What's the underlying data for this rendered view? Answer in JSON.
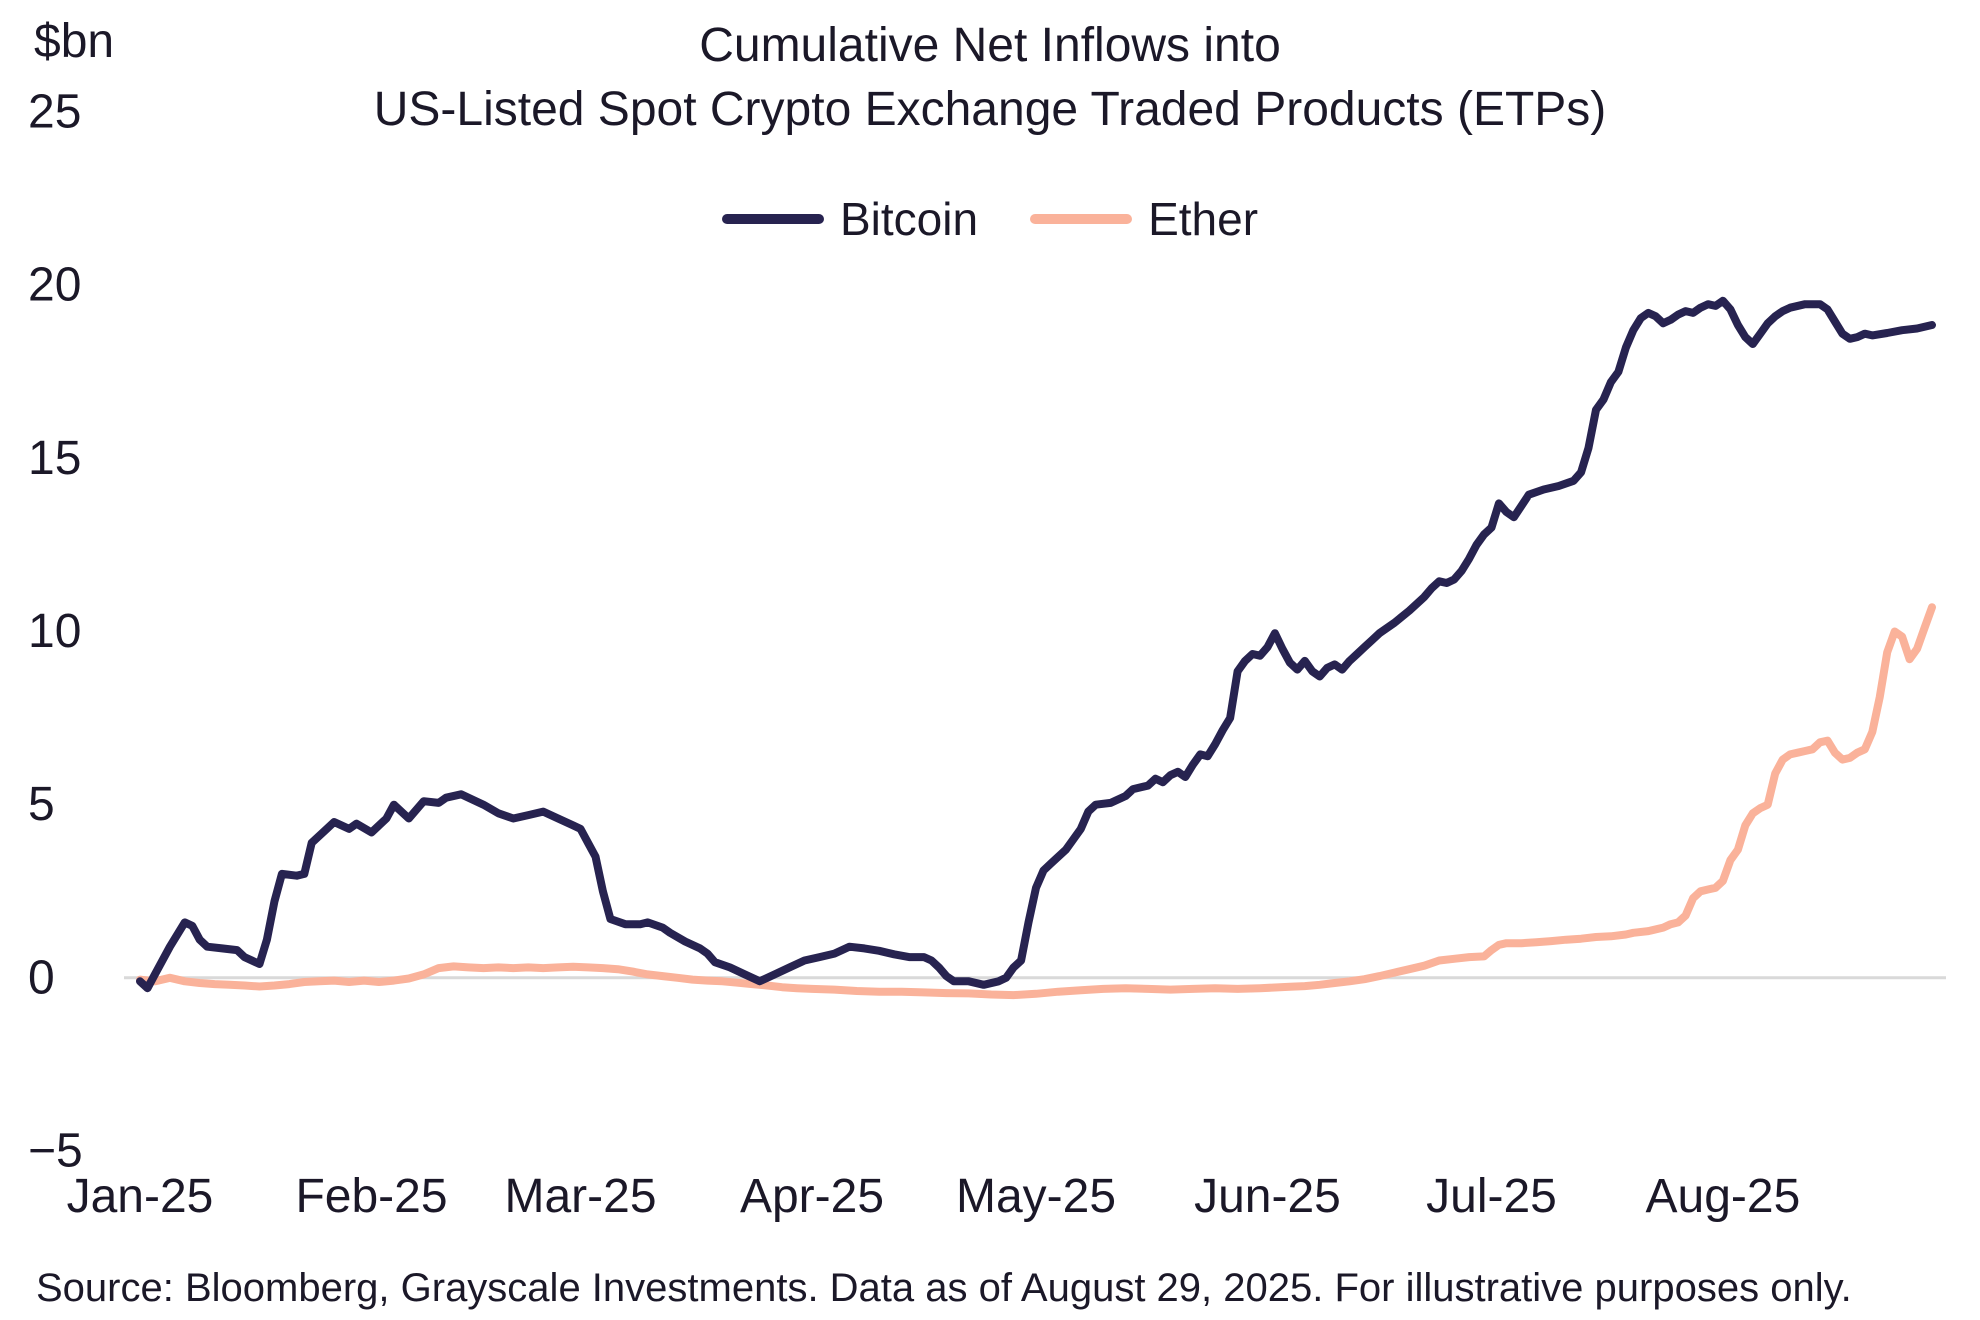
{
  "header": {
    "unit_label": "$bn",
    "title_line1": "Cumulative Net Inflows into",
    "title_line2": "US-Listed Spot Crypto Exchange Traded Products (ETPs)"
  },
  "legend": [
    {
      "label": "Bitcoin",
      "color": "#272350"
    },
    {
      "label": "Ether",
      "color": "#FAB29A"
    }
  ],
  "footer": {
    "source_text": "Source: Bloomberg, Grayscale Investments. Data as of August 29, 2025. For illustrative purposes only."
  },
  "colors": {
    "bitcoin": "#272350",
    "ether": "#FAB29A",
    "gridline": "#d9d9d9",
    "text": "#1b1828"
  },
  "chart_data": {
    "type": "line",
    "title": "Cumulative Net Inflows into US-Listed Spot Crypto Exchange Traded Products (ETPs)",
    "ylabel": "$bn",
    "xlabel": "",
    "ylim": [
      -5,
      25
    ],
    "y_ticks": [
      -5,
      0,
      5,
      10,
      15,
      20,
      25
    ],
    "xlim": [
      0,
      240
    ],
    "x_unit": "days since Jan 1, 2025",
    "x_ticks": [
      {
        "day": 0,
        "label": "Jan-25"
      },
      {
        "day": 31,
        "label": "Feb-25"
      },
      {
        "day": 59,
        "label": "Mar-25"
      },
      {
        "day": 90,
        "label": "Apr-25"
      },
      {
        "day": 120,
        "label": "May-25"
      },
      {
        "day": 151,
        "label": "Jun-25"
      },
      {
        "day": 181,
        "label": "Jul-25"
      },
      {
        "day": 212,
        "label": "Aug-25"
      }
    ],
    "zero_gridline": true,
    "grid": false,
    "legend_position": "top",
    "series": [
      {
        "name": "Bitcoin",
        "color": "#272350",
        "points": [
          [
            0,
            -0.1
          ],
          [
            1,
            -0.3
          ],
          [
            2,
            0.1
          ],
          [
            4,
            0.9
          ],
          [
            6,
            1.6
          ],
          [
            7,
            1.5
          ],
          [
            8,
            1.1
          ],
          [
            9,
            0.9
          ],
          [
            11,
            0.85
          ],
          [
            13,
            0.8
          ],
          [
            14,
            0.6
          ],
          [
            16,
            0.4
          ],
          [
            17,
            1.1
          ],
          [
            18,
            2.2
          ],
          [
            19,
            3.0
          ],
          [
            21,
            2.95
          ],
          [
            22,
            3.0
          ],
          [
            23,
            3.9
          ],
          [
            25,
            4.3
          ],
          [
            26,
            4.5
          ],
          [
            28,
            4.3
          ],
          [
            29,
            4.45
          ],
          [
            31,
            4.2
          ],
          [
            33,
            4.6
          ],
          [
            34,
            5.0
          ],
          [
            36,
            4.6
          ],
          [
            38,
            5.1
          ],
          [
            40,
            5.05
          ],
          [
            41,
            5.2
          ],
          [
            43,
            5.3
          ],
          [
            45,
            5.1
          ],
          [
            46,
            5.0
          ],
          [
            48,
            4.75
          ],
          [
            50,
            4.6
          ],
          [
            52,
            4.7
          ],
          [
            54,
            4.8
          ],
          [
            56,
            4.6
          ],
          [
            58,
            4.4
          ],
          [
            59,
            4.3
          ],
          [
            60,
            3.9
          ],
          [
            61,
            3.5
          ],
          [
            62,
            2.5
          ],
          [
            63,
            1.7
          ],
          [
            65,
            1.55
          ],
          [
            67,
            1.55
          ],
          [
            68,
            1.6
          ],
          [
            70,
            1.45
          ],
          [
            71,
            1.3
          ],
          [
            73,
            1.05
          ],
          [
            75,
            0.85
          ],
          [
            76,
            0.7
          ],
          [
            77,
            0.45
          ],
          [
            79,
            0.3
          ],
          [
            81,
            0.1
          ],
          [
            83,
            -0.1
          ],
          [
            85,
            0.1
          ],
          [
            87,
            0.3
          ],
          [
            89,
            0.5
          ],
          [
            91,
            0.6
          ],
          [
            93,
            0.7
          ],
          [
            95,
            0.9
          ],
          [
            97,
            0.85
          ],
          [
            99,
            0.78
          ],
          [
            101,
            0.68
          ],
          [
            103,
            0.6
          ],
          [
            105,
            0.6
          ],
          [
            106,
            0.5
          ],
          [
            107,
            0.3
          ],
          [
            108,
            0.05
          ],
          [
            109,
            -0.1
          ],
          [
            111,
            -0.1
          ],
          [
            113,
            -0.2
          ],
          [
            115,
            -0.1
          ],
          [
            116,
            0.0
          ],
          [
            117,
            0.3
          ],
          [
            118,
            0.5
          ],
          [
            119,
            1.6
          ],
          [
            120,
            2.6
          ],
          [
            121,
            3.1
          ],
          [
            122,
            3.3
          ],
          [
            124,
            3.7
          ],
          [
            126,
            4.3
          ],
          [
            127,
            4.8
          ],
          [
            128,
            5.0
          ],
          [
            130,
            5.05
          ],
          [
            132,
            5.25
          ],
          [
            133,
            5.45
          ],
          [
            135,
            5.55
          ],
          [
            136,
            5.75
          ],
          [
            137,
            5.65
          ],
          [
            138,
            5.85
          ],
          [
            139,
            5.95
          ],
          [
            140,
            5.8
          ],
          [
            141,
            6.15
          ],
          [
            142,
            6.45
          ],
          [
            143,
            6.4
          ],
          [
            144,
            6.75
          ],
          [
            145,
            7.15
          ],
          [
            146,
            7.5
          ],
          [
            147,
            8.85
          ],
          [
            148,
            9.15
          ],
          [
            149,
            9.35
          ],
          [
            150,
            9.3
          ],
          [
            151,
            9.55
          ],
          [
            152,
            9.95
          ],
          [
            153,
            9.5
          ],
          [
            154,
            9.1
          ],
          [
            155,
            8.9
          ],
          [
            156,
            9.15
          ],
          [
            157,
            8.85
          ],
          [
            158,
            8.7
          ],
          [
            159,
            8.95
          ],
          [
            160,
            9.05
          ],
          [
            161,
            8.9
          ],
          [
            162,
            9.15
          ],
          [
            163,
            9.35
          ],
          [
            164,
            9.55
          ],
          [
            165,
            9.75
          ],
          [
            166,
            9.95
          ],
          [
            168,
            10.25
          ],
          [
            170,
            10.6
          ],
          [
            172,
            11.0
          ],
          [
            173,
            11.25
          ],
          [
            174,
            11.45
          ],
          [
            175,
            11.4
          ],
          [
            176,
            11.5
          ],
          [
            177,
            11.75
          ],
          [
            178,
            12.1
          ],
          [
            179,
            12.5
          ],
          [
            180,
            12.8
          ],
          [
            181,
            13.0
          ],
          [
            182,
            13.7
          ],
          [
            183,
            13.45
          ],
          [
            184,
            13.3
          ],
          [
            186,
            13.95
          ],
          [
            188,
            14.1
          ],
          [
            190,
            14.2
          ],
          [
            192,
            14.35
          ],
          [
            193,
            14.6
          ],
          [
            194,
            15.3
          ],
          [
            195,
            16.4
          ],
          [
            196,
            16.7
          ],
          [
            197,
            17.2
          ],
          [
            198,
            17.5
          ],
          [
            199,
            18.2
          ],
          [
            200,
            18.7
          ],
          [
            201,
            19.05
          ],
          [
            202,
            19.2
          ],
          [
            203,
            19.1
          ],
          [
            204,
            18.9
          ],
          [
            205,
            19.0
          ],
          [
            206,
            19.15
          ],
          [
            207,
            19.25
          ],
          [
            208,
            19.2
          ],
          [
            209,
            19.35
          ],
          [
            210,
            19.45
          ],
          [
            211,
            19.4
          ],
          [
            212,
            19.55
          ],
          [
            213,
            19.3
          ],
          [
            214,
            18.85
          ],
          [
            215,
            18.5
          ],
          [
            216,
            18.3
          ],
          [
            217,
            18.6
          ],
          [
            218,
            18.9
          ],
          [
            219,
            19.1
          ],
          [
            220,
            19.25
          ],
          [
            221,
            19.35
          ],
          [
            223,
            19.45
          ],
          [
            225,
            19.45
          ],
          [
            226,
            19.3
          ],
          [
            227,
            18.95
          ],
          [
            228,
            18.6
          ],
          [
            229,
            18.45
          ],
          [
            230,
            18.5
          ],
          [
            231,
            18.6
          ],
          [
            232,
            18.55
          ],
          [
            234,
            18.62
          ],
          [
            236,
            18.7
          ],
          [
            238,
            18.75
          ],
          [
            240,
            18.85
          ]
        ]
      },
      {
        "name": "Ether",
        "color": "#FAB29A",
        "points": [
          [
            0,
            -0.05
          ],
          [
            2,
            -0.1
          ],
          [
            4,
            0.0
          ],
          [
            6,
            -0.1
          ],
          [
            8,
            -0.15
          ],
          [
            10,
            -0.18
          ],
          [
            12,
            -0.2
          ],
          [
            14,
            -0.22
          ],
          [
            16,
            -0.25
          ],
          [
            18,
            -0.22
          ],
          [
            20,
            -0.18
          ],
          [
            22,
            -0.12
          ],
          [
            24,
            -0.1
          ],
          [
            26,
            -0.08
          ],
          [
            28,
            -0.12
          ],
          [
            30,
            -0.08
          ],
          [
            32,
            -0.12
          ],
          [
            34,
            -0.08
          ],
          [
            36,
            -0.02
          ],
          [
            38,
            0.1
          ],
          [
            40,
            0.28
          ],
          [
            42,
            0.33
          ],
          [
            44,
            0.3
          ],
          [
            46,
            0.28
          ],
          [
            48,
            0.3
          ],
          [
            50,
            0.28
          ],
          [
            52,
            0.3
          ],
          [
            54,
            0.28
          ],
          [
            56,
            0.3
          ],
          [
            58,
            0.32
          ],
          [
            60,
            0.3
          ],
          [
            62,
            0.28
          ],
          [
            64,
            0.25
          ],
          [
            66,
            0.18
          ],
          [
            68,
            0.1
          ],
          [
            70,
            0.05
          ],
          [
            72,
            0.0
          ],
          [
            74,
            -0.05
          ],
          [
            76,
            -0.08
          ],
          [
            78,
            -0.1
          ],
          [
            80,
            -0.14
          ],
          [
            82,
            -0.18
          ],
          [
            84,
            -0.22
          ],
          [
            86,
            -0.27
          ],
          [
            88,
            -0.3
          ],
          [
            90,
            -0.32
          ],
          [
            93,
            -0.34
          ],
          [
            96,
            -0.38
          ],
          [
            99,
            -0.4
          ],
          [
            102,
            -0.4
          ],
          [
            105,
            -0.42
          ],
          [
            108,
            -0.44
          ],
          [
            111,
            -0.45
          ],
          [
            114,
            -0.48
          ],
          [
            117,
            -0.5
          ],
          [
            120,
            -0.46
          ],
          [
            123,
            -0.4
          ],
          [
            126,
            -0.36
          ],
          [
            129,
            -0.32
          ],
          [
            132,
            -0.3
          ],
          [
            135,
            -0.32
          ],
          [
            138,
            -0.34
          ],
          [
            141,
            -0.32
          ],
          [
            144,
            -0.3
          ],
          [
            147,
            -0.32
          ],
          [
            150,
            -0.3
          ],
          [
            152,
            -0.28
          ],
          [
            154,
            -0.26
          ],
          [
            156,
            -0.24
          ],
          [
            158,
            -0.2
          ],
          [
            160,
            -0.15
          ],
          [
            162,
            -0.1
          ],
          [
            164,
            -0.04
          ],
          [
            166,
            0.05
          ],
          [
            168,
            0.15
          ],
          [
            170,
            0.25
          ],
          [
            172,
            0.35
          ],
          [
            174,
            0.5
          ],
          [
            176,
            0.55
          ],
          [
            178,
            0.6
          ],
          [
            180,
            0.62
          ],
          [
            181,
            0.8
          ],
          [
            182,
            0.95
          ],
          [
            183,
            1.0
          ],
          [
            185,
            1.0
          ],
          [
            187,
            1.03
          ],
          [
            189,
            1.06
          ],
          [
            191,
            1.1
          ],
          [
            193,
            1.13
          ],
          [
            195,
            1.18
          ],
          [
            197,
            1.2
          ],
          [
            199,
            1.25
          ],
          [
            200,
            1.3
          ],
          [
            202,
            1.35
          ],
          [
            204,
            1.45
          ],
          [
            205,
            1.55
          ],
          [
            206,
            1.6
          ],
          [
            207,
            1.8
          ],
          [
            208,
            2.3
          ],
          [
            209,
            2.5
          ],
          [
            210,
            2.55
          ],
          [
            211,
            2.6
          ],
          [
            212,
            2.8
          ],
          [
            213,
            3.4
          ],
          [
            214,
            3.7
          ],
          [
            215,
            4.4
          ],
          [
            216,
            4.75
          ],
          [
            217,
            4.9
          ],
          [
            218,
            5.0
          ],
          [
            219,
            5.9
          ],
          [
            220,
            6.3
          ],
          [
            221,
            6.45
          ],
          [
            222,
            6.5
          ],
          [
            223,
            6.55
          ],
          [
            224,
            6.6
          ],
          [
            225,
            6.8
          ],
          [
            226,
            6.85
          ],
          [
            227,
            6.5
          ],
          [
            228,
            6.3
          ],
          [
            229,
            6.35
          ],
          [
            230,
            6.5
          ],
          [
            231,
            6.6
          ],
          [
            232,
            7.1
          ],
          [
            233,
            8.1
          ],
          [
            234,
            9.4
          ],
          [
            235,
            10.0
          ],
          [
            236,
            9.85
          ],
          [
            237,
            9.2
          ],
          [
            238,
            9.5
          ],
          [
            239,
            10.1
          ],
          [
            240,
            10.7
          ]
        ]
      }
    ]
  }
}
